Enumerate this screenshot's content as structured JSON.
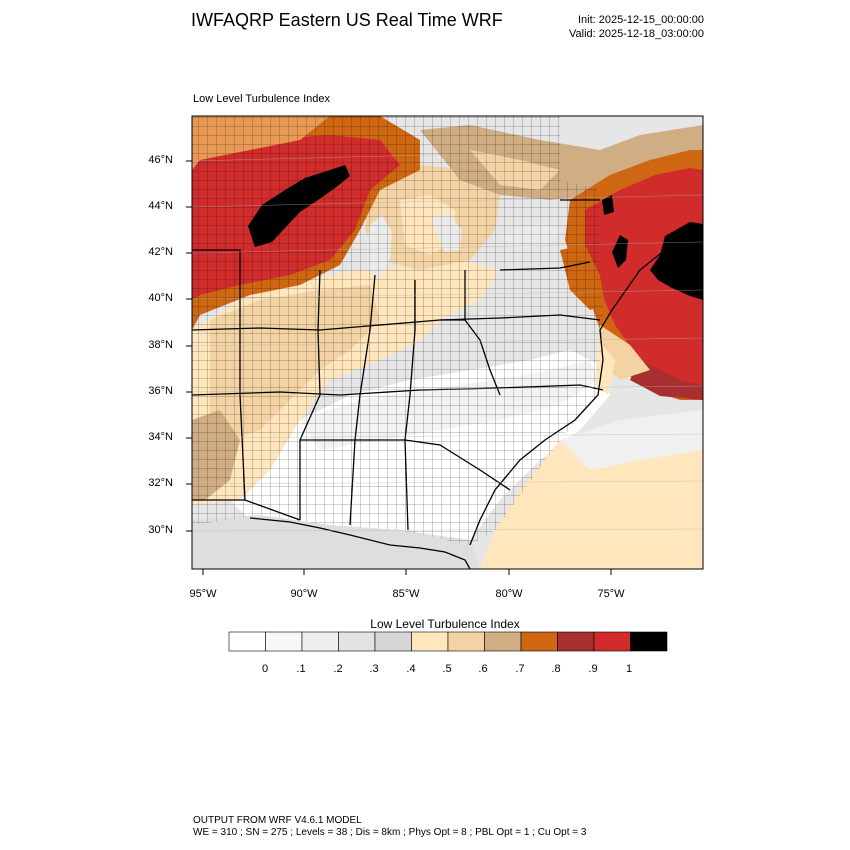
{
  "header": {
    "title": "IWFAQRP Eastern US Real Time WRF",
    "init": "Init: 2025-12-15_00:00:00",
    "valid": "Valid: 2025-12-18_03:00:00"
  },
  "map": {
    "field_label": "Low Level Turbulence Index",
    "lat_labels": [
      "46°N",
      "44°N",
      "42°N",
      "40°N",
      "38°N",
      "36°N",
      "34°N",
      "32°N",
      "30°N"
    ],
    "lon_labels": [
      "95°W",
      "90°W",
      "85°W",
      "80°W",
      "75°W"
    ],
    "extent": {
      "lon_min": -95.6,
      "lon_max": -70.5,
      "lat_min": 28.4,
      "lat_max": 47.9
    }
  },
  "colorbar": {
    "title": "Low Level Turbulence Index",
    "colors": [
      "#ffffff",
      "#f7f7f7",
      "#efefef",
      "#e3e3e3",
      "#d6d6d6",
      "#ffe6bd",
      "#f3d3a3",
      "#d1ad84",
      "#cf6611",
      "#a82f2f",
      "#d02c2c",
      "#000000"
    ],
    "tick_labels": [
      "0",
      ".1",
      ".2",
      ".3",
      ".4",
      ".5",
      ".6",
      ".7",
      ".8",
      ".9",
      "1"
    ]
  },
  "footer": {
    "line1": "OUTPUT FROM WRF V4.6.1 MODEL",
    "line2": "WE = 310 ; SN = 275 ; Levels = 38 ; Dis = 8km ; Phys Opt = 8 ; PBL Opt = 1 ; Cu Opt = 3"
  }
}
